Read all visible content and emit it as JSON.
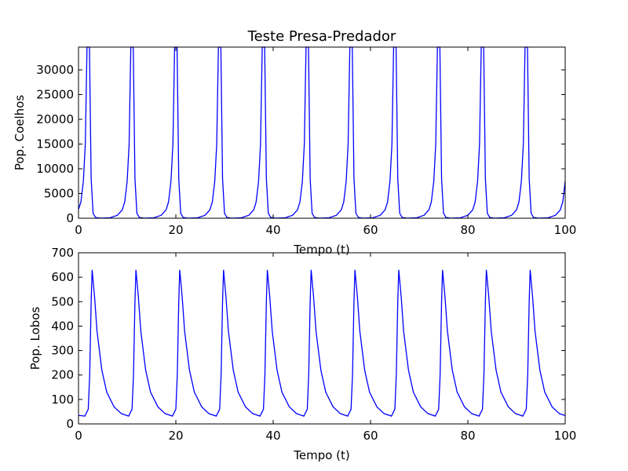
{
  "chart_data": [
    {
      "type": "line",
      "title": "Teste Presa-Predador",
      "xlabel": "Tempo (t)",
      "ylabel": "Pop. Coelhos",
      "color": "#0000ff",
      "x": [
        0,
        0.5,
        1,
        1.4,
        1.75,
        2.25,
        2.6,
        3,
        3.5,
        4.5,
        6.5,
        8,
        9,
        9.5,
        10,
        10.4,
        10.75,
        11.25,
        11.6,
        12,
        12.5,
        13.5,
        15.5,
        17,
        18,
        18.5,
        19,
        19.4,
        19.75,
        20.25,
        20.6,
        21,
        21.5,
        22.5,
        24.5,
        26,
        27,
        27.5,
        28,
        28.4,
        28.75,
        29.25,
        29.6,
        30,
        30.5,
        31.5,
        33.5,
        35,
        36,
        36.5,
        37,
        37.4,
        37.75,
        38.25,
        38.6,
        39,
        39.5,
        40.5,
        42.5,
        44,
        45,
        45.5,
        46,
        46.4,
        46.75,
        47.25,
        47.6,
        48,
        48.5,
        49.5,
        51.5,
        53,
        54,
        54.5,
        55,
        55.4,
        55.75,
        56.25,
        56.6,
        57,
        57.5,
        58.5,
        60.5,
        62,
        63,
        63.5,
        64,
        64.4,
        64.75,
        65.25,
        65.6,
        66,
        66.5,
        67.5,
        69.5,
        71,
        72,
        72.5,
        73,
        73.4,
        73.75,
        74.25,
        74.6,
        75,
        75.5,
        76.5,
        78.5,
        80,
        81,
        81.5,
        82,
        82.4,
        82.75,
        83.25,
        83.6,
        84,
        84.5,
        85.5,
        87.5,
        89,
        90,
        90.5,
        91,
        91.4,
        91.75,
        92.25,
        92.6,
        93,
        93.5,
        94.5,
        96.5,
        98,
        99,
        99.5,
        100
      ],
      "values": [
        1800,
        3300,
        7500,
        15000,
        34600,
        34600,
        8000,
        1000,
        150,
        20,
        100,
        600,
        1700,
        3300,
        7500,
        15000,
        34600,
        34600,
        8000,
        1000,
        150,
        20,
        100,
        600,
        1700,
        3300,
        7500,
        15000,
        34600,
        34600,
        8000,
        1000,
        150,
        20,
        100,
        600,
        1700,
        3300,
        7500,
        15000,
        34600,
        34600,
        8000,
        1000,
        150,
        20,
        100,
        600,
        1700,
        3300,
        7500,
        15000,
        34600,
        34600,
        8000,
        1000,
        150,
        20,
        100,
        600,
        1700,
        3300,
        7500,
        15000,
        34600,
        34600,
        8000,
        1000,
        150,
        20,
        100,
        600,
        1700,
        3300,
        7500,
        15000,
        34600,
        34600,
        8000,
        1000,
        150,
        20,
        100,
        600,
        1700,
        3300,
        7500,
        15000,
        34600,
        34600,
        8000,
        1000,
        150,
        20,
        100,
        600,
        1700,
        3300,
        7500,
        15000,
        34600,
        34600,
        8000,
        1000,
        150,
        20,
        100,
        600,
        1700,
        3300,
        7500,
        15000,
        34600,
        34600,
        8000,
        1000,
        150,
        20,
        100,
        600,
        1700,
        3300,
        7500,
        15000,
        34600,
        34600,
        8000,
        1000,
        150,
        20,
        100,
        600,
        1700,
        3300,
        7500
      ],
      "xlim": [
        0,
        100
      ],
      "xticks": [
        0,
        20,
        40,
        60,
        80,
        100
      ],
      "ylim": [
        0,
        34600
      ],
      "yticks": [
        0,
        5000,
        10000,
        15000,
        20000,
        25000,
        30000
      ]
    },
    {
      "type": "line",
      "xlabel": "Tempo (t)",
      "ylabel": "Pop. Lobos",
      "color": "#0000ff",
      "x": [
        0,
        1.3,
        2,
        2.3,
        2.6,
        2.8,
        3.3,
        3.8,
        4.8,
        5.8,
        7.3,
        8.8,
        10.3,
        11,
        11.3,
        11.6,
        11.8,
        12.3,
        12.8,
        13.8,
        14.8,
        16.3,
        17.8,
        19.3,
        20,
        20.3,
        20.6,
        20.8,
        21.3,
        21.8,
        22.8,
        23.8,
        25.3,
        26.8,
        28.3,
        29,
        29.3,
        29.6,
        29.8,
        30.3,
        30.8,
        31.8,
        32.8,
        34.3,
        35.8,
        37.3,
        38,
        38.3,
        38.6,
        38.8,
        39.3,
        39.8,
        40.8,
        41.8,
        43.3,
        44.8,
        46.3,
        47,
        47.3,
        47.6,
        47.8,
        48.3,
        48.8,
        49.8,
        50.8,
        52.3,
        53.8,
        55.3,
        56,
        56.3,
        56.6,
        56.8,
        57.3,
        57.8,
        58.8,
        59.8,
        61.3,
        62.8,
        64.3,
        65,
        65.3,
        65.6,
        65.8,
        66.3,
        66.8,
        67.8,
        68.8,
        70.3,
        71.8,
        73.3,
        74,
        74.3,
        74.6,
        74.8,
        75.3,
        75.8,
        76.8,
        77.8,
        79.3,
        80.8,
        82.3,
        83,
        83.3,
        83.6,
        83.8,
        84.3,
        84.8,
        85.8,
        86.8,
        88.3,
        89.8,
        91.3,
        92,
        92.3,
        92.6,
        92.8,
        93.3,
        93.8,
        94.8,
        95.8,
        97.3,
        98.8,
        100
      ],
      "values": [
        35,
        32,
        60,
        200,
        500,
        630,
        520,
        380,
        220,
        130,
        70,
        42,
        32,
        60,
        200,
        500,
        630,
        520,
        380,
        220,
        130,
        70,
        42,
        32,
        60,
        200,
        500,
        630,
        520,
        380,
        220,
        130,
        70,
        42,
        32,
        60,
        200,
        500,
        630,
        520,
        380,
        220,
        130,
        70,
        42,
        32,
        60,
        200,
        500,
        630,
        520,
        380,
        220,
        130,
        70,
        42,
        32,
        60,
        200,
        500,
        630,
        520,
        380,
        220,
        130,
        70,
        42,
        32,
        60,
        200,
        500,
        630,
        520,
        380,
        220,
        130,
        70,
        42,
        32,
        60,
        200,
        500,
        630,
        520,
        380,
        220,
        130,
        70,
        42,
        32,
        60,
        200,
        500,
        630,
        520,
        380,
        220,
        130,
        70,
        42,
        32,
        60,
        200,
        500,
        630,
        520,
        380,
        220,
        130,
        70,
        42,
        32,
        60,
        200,
        500,
        630,
        520,
        380,
        220,
        130,
        70,
        42,
        34
      ],
      "xlim": [
        0,
        100
      ],
      "xticks": [
        0,
        20,
        40,
        60,
        80,
        100
      ],
      "ylim": [
        0,
        700
      ],
      "yticks": [
        0,
        100,
        200,
        300,
        400,
        500,
        600,
        700
      ]
    }
  ]
}
